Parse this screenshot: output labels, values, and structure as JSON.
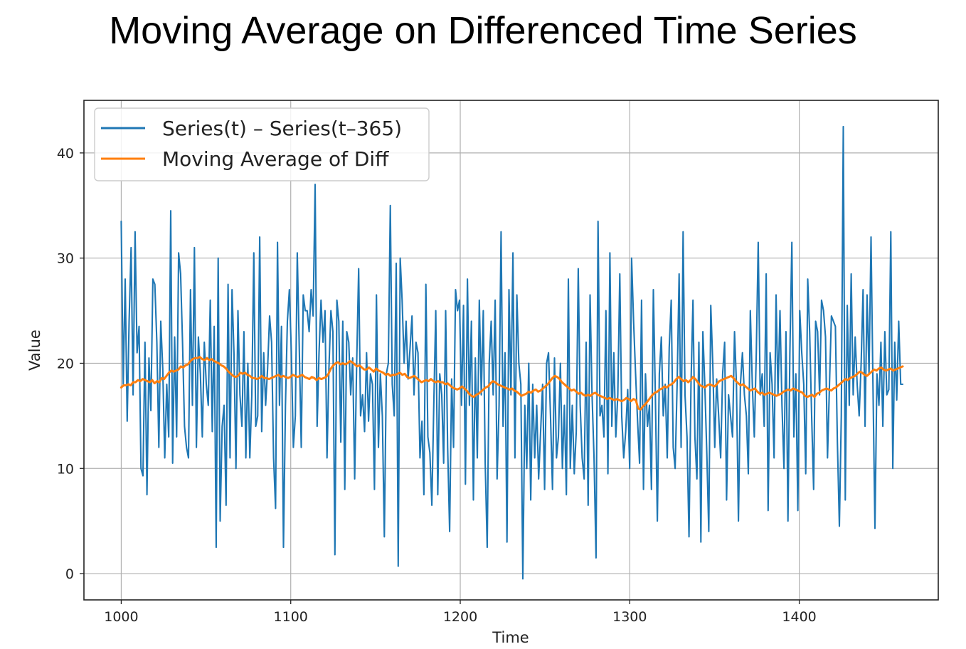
{
  "chart_data": {
    "type": "line",
    "title": "Moving Average on Differenced Time Series",
    "xlabel": "Time",
    "ylabel": "Value",
    "xlim": [
      978,
      1482
    ],
    "ylim": [
      -2.5,
      45
    ],
    "xticks": [
      1000,
      1100,
      1200,
      1300,
      1400
    ],
    "yticks": [
      0,
      10,
      20,
      30,
      40
    ],
    "grid": true,
    "legend_position": "top-left",
    "x_start": 1000,
    "x_end": 1461,
    "series": [
      {
        "name": "Series(t) – Series(t–365)",
        "color": "#1f77b4",
        "values": [
          33.5,
          18,
          28,
          14.5,
          24,
          31,
          17,
          32.5,
          21,
          23.5,
          10,
          9.3,
          22,
          7.5,
          20.5,
          15.5,
          28,
          27.5,
          22,
          12,
          24,
          19.5,
          11,
          18,
          13,
          34.5,
          10.5,
          22.5,
          13,
          30.5,
          28.5,
          22,
          14,
          12,
          11,
          27,
          16,
          31,
          12,
          22.5,
          19,
          13,
          22,
          18,
          16,
          26,
          13.5,
          23.5,
          2.5,
          30,
          5,
          14,
          16,
          6.5,
          27.5,
          11,
          27,
          21,
          10,
          25,
          17,
          14,
          23,
          11,
          20,
          11,
          17,
          30.5,
          14,
          15,
          32,
          13.5,
          21,
          16,
          19.5,
          24.5,
          22,
          11,
          6.2,
          31.5,
          16,
          23.5,
          2.5,
          16,
          24,
          27,
          21,
          12,
          15,
          30.5,
          21.5,
          12,
          26.5,
          25,
          25,
          23,
          27,
          24.5,
          37,
          14,
          21,
          26,
          22,
          25,
          11,
          19.5,
          25,
          23,
          1.8,
          26,
          24,
          12.5,
          24,
          8,
          23,
          22,
          17,
          20.5,
          9,
          20,
          29,
          15,
          17,
          13.5,
          21,
          14.5,
          19,
          18,
          8,
          26.5,
          12,
          19,
          15,
          3.5,
          19,
          20,
          35,
          18,
          15,
          29.5,
          0.7,
          30,
          26,
          20,
          24,
          18.5,
          21.5,
          24.5,
          17,
          22,
          21,
          11,
          14.5,
          7.5,
          27.5,
          13,
          11.5,
          6.5,
          16,
          25,
          7.5,
          19,
          17,
          10.5,
          25,
          12,
          4,
          18.5,
          12,
          27,
          25,
          26,
          16,
          25.5,
          8.5,
          28,
          16,
          24,
          7,
          20.5,
          11,
          26,
          17,
          25,
          10.5,
          2.5,
          20,
          24,
          17,
          26,
          9,
          16,
          32.5,
          14,
          21,
          3,
          27,
          17,
          30.5,
          11,
          26.5,
          20,
          18,
          -0.5,
          16,
          10,
          20,
          7,
          18,
          11,
          16,
          9,
          13.5,
          18,
          8,
          20,
          21,
          15,
          8,
          20.5,
          11,
          13,
          20,
          10,
          16,
          7.5,
          28,
          10,
          16,
          9.5,
          13.5,
          29,
          16,
          11,
          9,
          22,
          6.5,
          26.5,
          17,
          11,
          1.5,
          33.5,
          15,
          16,
          13,
          25,
          9.5,
          30.5,
          14,
          21,
          13,
          17,
          28.5,
          15,
          11,
          13.5,
          17.5,
          10,
          30,
          24,
          19,
          14.5,
          10.5,
          26,
          8,
          19,
          14,
          16,
          8,
          27,
          17,
          5,
          19,
          22.5,
          15,
          18,
          11,
          21.5,
          26,
          12,
          10,
          18,
          28.5,
          12,
          32.5,
          17,
          13,
          3.5,
          18,
          26,
          13,
          9,
          22,
          3,
          23,
          18,
          11.5,
          4,
          25.5,
          20,
          12,
          18.5,
          15,
          11,
          19,
          22,
          7,
          17,
          15,
          13,
          23,
          18,
          5,
          18,
          21,
          17,
          15,
          9.5,
          25,
          18,
          13,
          21,
          31.5,
          17,
          19,
          14,
          28.5,
          6,
          21,
          18,
          11,
          26.5,
          17,
          25,
          16,
          10,
          23,
          5,
          21,
          31.5,
          13,
          19,
          6,
          25,
          21,
          18,
          9.5,
          28,
          23,
          15,
          8,
          24,
          23,
          17,
          26,
          25,
          22.5,
          11,
          18,
          24.5,
          24,
          23.5,
          12.5,
          4.5,
          15,
          42.5,
          7,
          25.5,
          16,
          28.5,
          17,
          22.5,
          18,
          15,
          20,
          27,
          14,
          26.5,
          19,
          32,
          18,
          4.3,
          19,
          16,
          22,
          14,
          23,
          17,
          17.5,
          32.5,
          10,
          22,
          16.5,
          24,
          18,
          18
        ]
      },
      {
        "name": "Moving Average of Diff",
        "color": "#ff7f0e",
        "values": [
          17.7,
          17.9,
          17.9,
          18.0,
          17.9,
          18.2,
          18.2,
          18.4,
          18.3,
          18.5,
          18.4,
          18.3,
          18.2,
          18.4,
          18.1,
          18.3,
          18.2,
          18.6,
          18.5,
          18.8,
          19.1,
          19.3,
          19.2,
          19.3,
          19.4,
          19.7,
          19.6,
          19.8,
          19.9,
          20.2,
          20.4,
          20.5,
          20.5,
          20.6,
          20.4,
          20.3,
          20.5,
          20.3,
          20.4,
          20.2,
          20.1,
          20.0,
          19.8,
          19.7,
          19.5,
          19.2,
          19.0,
          18.8,
          18.7,
          18.8,
          19.1,
          19.0,
          19.1,
          18.9,
          18.8,
          18.6,
          18.6,
          18.5,
          18.6,
          18.8,
          18.6,
          18.6,
          18.5,
          18.6,
          18.7,
          18.8,
          18.9,
          18.7,
          18.8,
          18.7,
          18.6,
          18.7,
          18.9,
          18.8,
          18.7,
          18.8,
          18.9,
          18.7,
          18.6,
          18.5,
          18.7,
          18.6,
          18.4,
          18.6,
          18.5,
          18.6,
          18.7,
          19.0,
          19.5,
          19.8,
          20.0,
          20.1,
          19.9,
          20.0,
          19.9,
          20.0,
          20.2,
          20.1,
          19.9,
          19.7,
          19.8,
          19.6,
          19.4,
          19.4,
          19.6,
          19.4,
          19.2,
          19.5,
          19.3,
          19.2,
          19.1,
          18.9,
          19.0,
          18.8,
          18.9,
          18.9,
          19.0,
          19.1,
          18.9,
          19.0,
          18.7,
          18.6,
          18.7,
          18.8,
          18.6,
          18.4,
          18.2,
          18.3,
          18.4,
          18.3,
          18.5,
          18.3,
          18.2,
          18.3,
          18.2,
          18.2,
          18.0,
          18.1,
          17.9,
          17.7,
          17.6,
          17.5,
          17.6,
          17.8,
          17.6,
          17.4,
          17.1,
          16.9,
          16.8,
          17.0,
          17.1,
          17.3,
          17.5,
          17.7,
          17.8,
          18.1,
          18.3,
          18.2,
          18.0,
          17.9,
          17.8,
          17.7,
          17.6,
          17.5,
          17.6,
          17.4,
          17.3,
          17.1,
          16.9,
          17.0,
          17.1,
          17.3,
          17.2,
          17.4,
          17.5,
          17.3,
          17.4,
          17.6,
          17.8,
          18.0,
          18.3,
          18.6,
          18.8,
          18.7,
          18.5,
          18.2,
          18.0,
          17.8,
          17.6,
          17.4,
          17.5,
          17.3,
          17.1,
          17.2,
          17.0,
          16.9,
          17.0,
          16.9,
          17.1,
          17.2,
          17.0,
          16.9,
          16.8,
          16.7,
          16.6,
          16.7,
          16.6,
          16.5,
          16.6,
          16.5,
          16.4,
          16.5,
          16.7,
          16.6,
          16.4,
          16.6,
          16.5,
          15.7,
          15.6,
          15.9,
          16.1,
          16.4,
          16.7,
          17.0,
          17.2,
          17.3,
          17.5,
          17.6,
          17.8,
          17.7,
          17.9,
          18.0,
          18.2,
          18.5,
          18.7,
          18.5,
          18.3,
          18.4,
          18.2,
          18.4,
          18.7,
          18.5,
          18.2,
          17.9,
          17.8,
          17.7,
          17.9,
          18.0,
          17.9,
          17.8,
          18.0,
          18.3,
          18.4,
          18.5,
          18.6,
          18.7,
          18.8,
          18.6,
          18.3,
          18.1,
          17.9,
          18.0,
          17.8,
          17.6,
          17.4,
          17.5,
          17.6,
          17.3,
          17.1,
          17.2,
          17.0,
          17.1,
          17.2,
          17.1,
          17.0,
          16.9,
          17.0,
          17.1,
          17.3,
          17.4,
          17.5,
          17.4,
          17.6,
          17.5,
          17.4,
          17.3,
          17.2,
          16.9,
          16.8,
          16.9,
          17.0,
          16.8,
          17.1,
          17.2,
          17.4,
          17.5,
          17.6,
          17.5,
          17.4,
          17.6,
          17.7,
          17.9,
          18.1,
          18.3,
          18.5,
          18.4,
          18.6,
          18.7,
          18.8,
          19.0,
          19.2,
          19.1,
          18.9,
          18.8,
          19.0,
          19.2,
          19.4,
          19.3,
          19.5,
          19.6,
          19.4,
          19.3,
          19.4,
          19.5,
          19.3,
          19.4,
          19.5,
          19.6,
          19.7
        ]
      }
    ]
  }
}
